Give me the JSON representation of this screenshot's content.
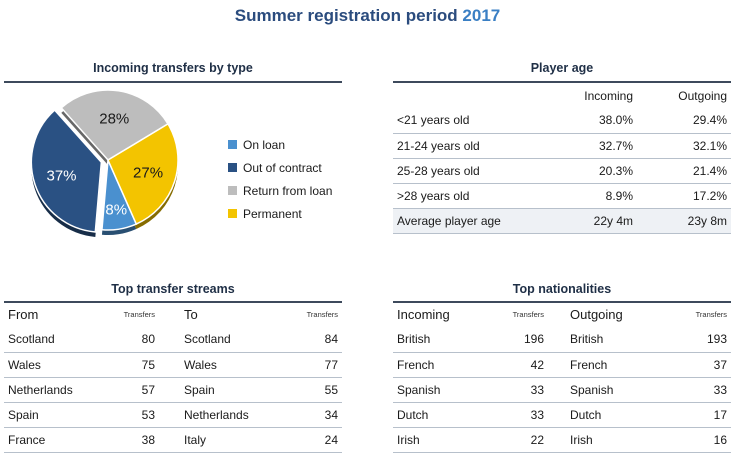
{
  "header": {
    "title": "Summer registration period",
    "year": "2017"
  },
  "colors": {
    "on_loan": "#4a90cf",
    "out_of_contract": "#2a5183",
    "return_from_loan": "#bdbdbd",
    "permanent": "#f3c400",
    "title_blue": "#2b4c7e",
    "year_blue": "#3a7fc4"
  },
  "chart_data": {
    "type": "pie",
    "title": "Incoming transfers by type",
    "slices": [
      {
        "name": "On loan",
        "value": 8,
        "label": "8%",
        "color": "#4a90cf"
      },
      {
        "name": "Out of contract",
        "value": 37,
        "label": "37%",
        "color": "#2a5183"
      },
      {
        "name": "Return from loan",
        "value": 28,
        "label": "28%",
        "color": "#bdbdbd"
      },
      {
        "name": "Permanent",
        "value": 27,
        "label": "27%",
        "color": "#f3c400"
      }
    ],
    "legend_position": "right"
  },
  "player_age": {
    "title": "Player age",
    "columns": [
      "Incoming",
      "Outgoing"
    ],
    "rows": [
      {
        "label": "<21 years old",
        "incoming": "38.0%",
        "outgoing": "29.4%"
      },
      {
        "label": "21-24 years old",
        "incoming": "32.7%",
        "outgoing": "32.1%"
      },
      {
        "label": "25-28 years old",
        "incoming": "20.3%",
        "outgoing": "21.4%"
      },
      {
        "label": ">28 years old",
        "incoming": "8.9%",
        "outgoing": "17.2%"
      }
    ],
    "average": {
      "label": "Average player age",
      "incoming": "22y 4m",
      "outgoing": "23y 8m"
    }
  },
  "streams": {
    "title": "Top transfer streams",
    "from_header": "From",
    "to_header": "To",
    "count_header": "Transfers",
    "rows": [
      {
        "from": "Scotland",
        "from_n": "80",
        "to": "Scotland",
        "to_n": "84"
      },
      {
        "from": "Wales",
        "from_n": "75",
        "to": "Wales",
        "to_n": "77"
      },
      {
        "from": "Netherlands",
        "from_n": "57",
        "to": "Spain",
        "to_n": "55"
      },
      {
        "from": "Spain",
        "from_n": "53",
        "to": "Netherlands",
        "to_n": "34"
      },
      {
        "from": "France",
        "from_n": "38",
        "to": "Italy",
        "to_n": "24"
      }
    ]
  },
  "nationalities": {
    "title": "Top nationalities",
    "incoming_header": "Incoming",
    "outgoing_header": "Outgoing",
    "count_header": "Transfers",
    "rows": [
      {
        "in": "British",
        "in_n": "196",
        "out": "British",
        "out_n": "193"
      },
      {
        "in": "French",
        "in_n": "42",
        "out": "French",
        "out_n": "37"
      },
      {
        "in": "Spanish",
        "in_n": "33",
        "out": "Spanish",
        "out_n": "33"
      },
      {
        "in": "Dutch",
        "in_n": "33",
        "out": "Dutch",
        "out_n": "17"
      },
      {
        "in": "Irish",
        "in_n": "22",
        "out": "Irish",
        "out_n": "16"
      }
    ]
  }
}
